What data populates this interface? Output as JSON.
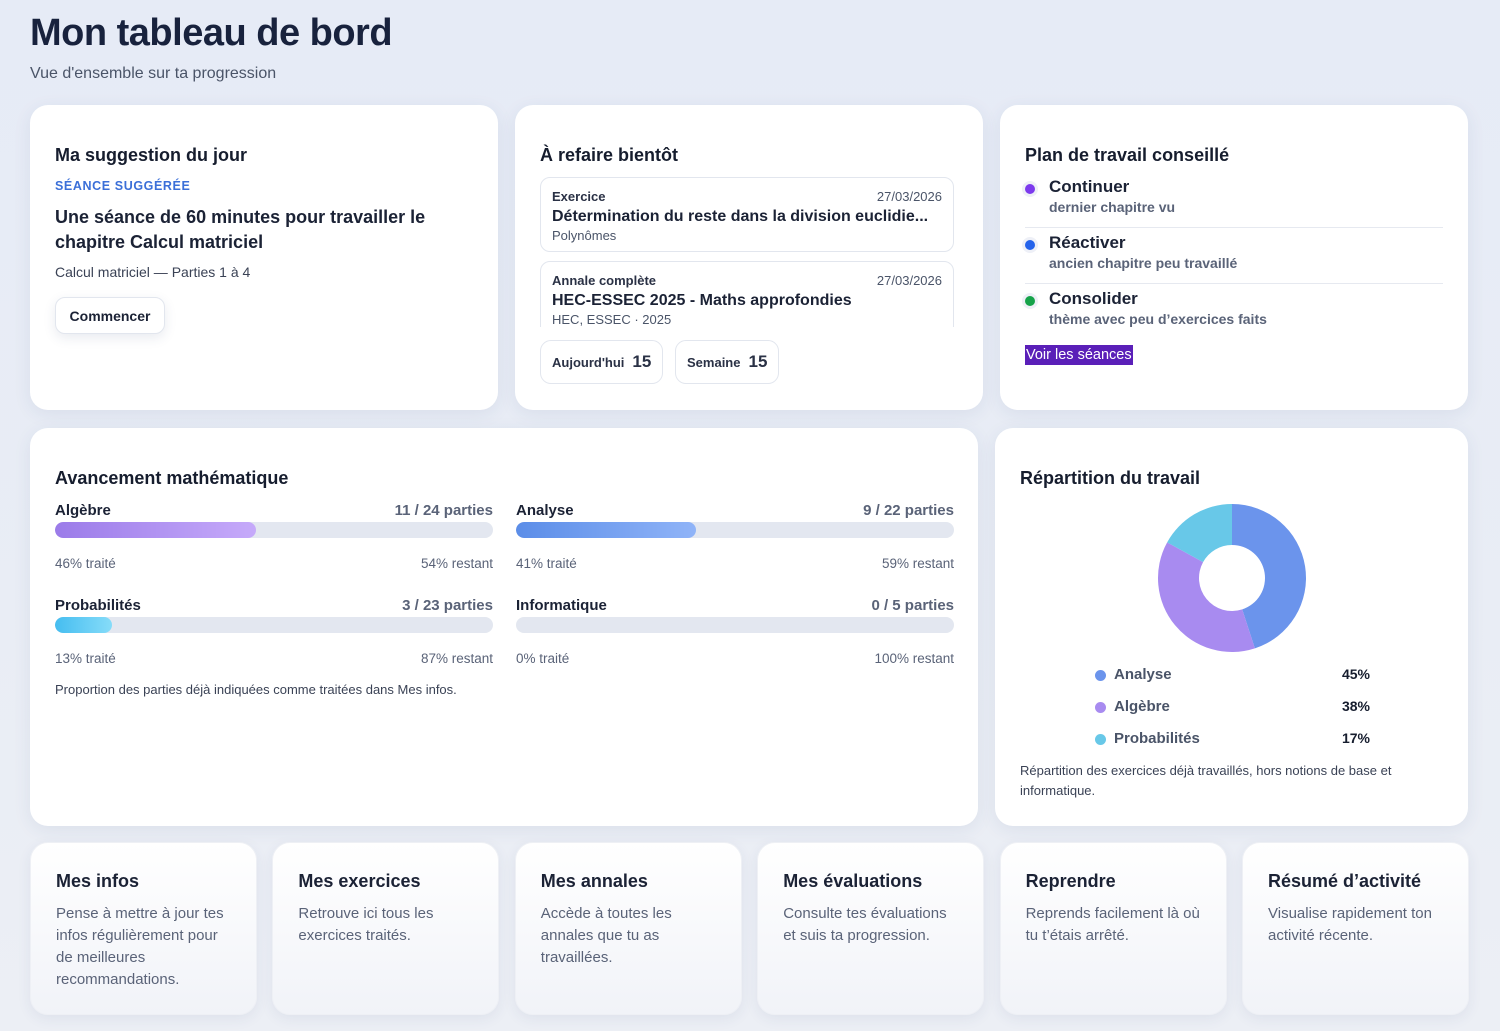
{
  "header": {
    "title": "Mon tableau de bord",
    "subtitle": "Vue d'ensemble sur ta progression"
  },
  "suggestion": {
    "title": "Ma suggestion du jour",
    "tag": "SÉANCE SUGGÉRÉE",
    "heading": "Une séance de 60 minutes pour travailler le chapitre Calcul matriciel",
    "detail": "Calcul matriciel — Parties 1 à 4",
    "button": "Commencer"
  },
  "refaire": {
    "title": "À refaire bientôt",
    "items": [
      {
        "type": "Exercice",
        "date": "27/03/2026",
        "name": "Détermination du reste dans la division euclidie...",
        "sub": "Polynômes"
      },
      {
        "type": "Annale complète",
        "date": "27/03/2026",
        "name": "HEC-ESSEC 2025 - Maths approfondies",
        "sub": "HEC, ESSEC · 2025"
      }
    ],
    "counters": [
      {
        "label": "Aujourd'hui",
        "value": 15
      },
      {
        "label": "Semaine",
        "value": 15
      }
    ]
  },
  "plan": {
    "title": "Plan de travail conseillé",
    "steps": [
      {
        "name": "Continuer",
        "desc": "dernier chapitre vu",
        "color": "#7c3aed"
      },
      {
        "name": "Réactiver",
        "desc": "ancien chapitre peu travaillé",
        "color": "#2563eb"
      },
      {
        "name": "Consolider",
        "desc": "thème avec peu d’exercices faits",
        "color": "#16a34a"
      }
    ],
    "link": "Voir les séances"
  },
  "avancement": {
    "title": "Avancement mathématique",
    "subjects": [
      {
        "name": "Algèbre",
        "parts": "11 / 24 parties",
        "done": 46,
        "done_label": "46% traité",
        "rest_label": "54% restant",
        "colors": [
          "#9b7be9",
          "#c6aafa"
        ]
      },
      {
        "name": "Analyse",
        "parts": "9 / 22 parties",
        "done": 41,
        "done_label": "41% traité",
        "rest_label": "59% restant",
        "colors": [
          "#5b8de8",
          "#90b4f8"
        ]
      },
      {
        "name": "Probabilités",
        "parts": "3 / 23 parties",
        "done": 13,
        "done_label": "13% traité",
        "rest_label": "87% restant",
        "colors": [
          "#45bdf0",
          "#86dcf9"
        ]
      },
      {
        "name": "Informatique",
        "parts": "0 / 5 parties",
        "done": 0,
        "done_label": "0% traité",
        "rest_label": "100% restant",
        "colors": [
          "#9aa6c0",
          "#c2cadb"
        ]
      }
    ],
    "note": "Proportion des parties déjà indiquées comme traitées dans Mes infos."
  },
  "repartition": {
    "title": "Répartition du travail",
    "chart_data": {
      "type": "pie",
      "categories": [
        "Analyse",
        "Algèbre",
        "Probabilités"
      ],
      "values": [
        45,
        38,
        17
      ],
      "value_labels": [
        "45%",
        "38%",
        "17%"
      ],
      "colors": [
        "#6b94ec",
        "#a88bf0",
        "#68c8e8"
      ]
    },
    "note": "Répartition des exercices déjà travaillés, hors notions de base et informatique."
  },
  "shortcuts": [
    {
      "title": "Mes infos",
      "text": "Pense à mettre à jour tes infos régulièrement pour de meilleures recommandations."
    },
    {
      "title": "Mes exercices",
      "text": "Retrouve ici tous les exercices traités."
    },
    {
      "title": "Mes annales",
      "text": "Accède à toutes les annales que tu as travaillées."
    },
    {
      "title": "Mes évaluations",
      "text": "Consulte tes évaluations et suis ta progression."
    },
    {
      "title": "Reprendre",
      "text": "Reprends facilement là où tu t’étais arrêté."
    },
    {
      "title": "Résumé d’activité",
      "text": "Visualise rapidement ton activité récente."
    }
  ]
}
